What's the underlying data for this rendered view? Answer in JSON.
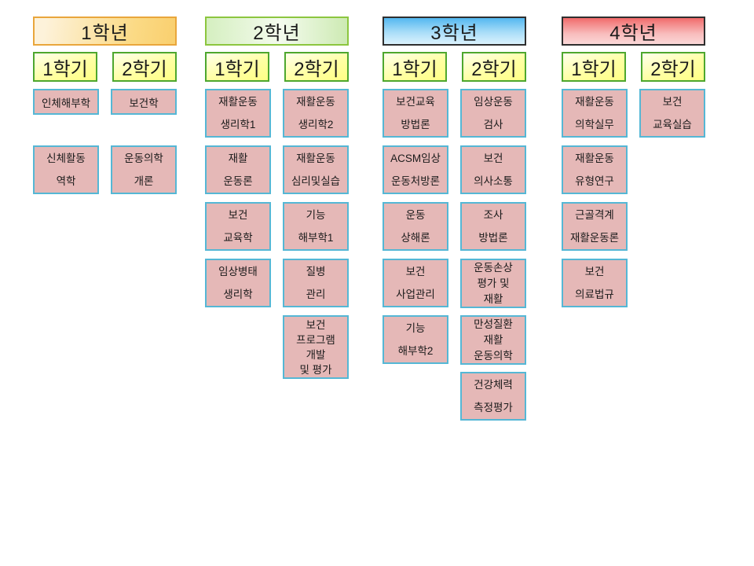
{
  "colors": {
    "course_fill": "#e5b8b7",
    "course_border": "#55b7d5",
    "semester_fill": "#ffff8c",
    "semester_border": "#4ea72e",
    "year1_accent": "#f9cf6e",
    "year2_accent": "#cdeab3",
    "year3_accent": "#54b8f0",
    "year4_accent": "#f16b6b"
  },
  "columns": [
    {
      "year_label": "1학년",
      "theme": "orange",
      "semesters": [
        {
          "label": "1학기",
          "courses": [
            {
              "lines": [
                "인체해부학"
              ]
            },
            {
              "lines": [
                "신체활동",
                "역학"
              ]
            }
          ]
        },
        {
          "label": "2학기",
          "courses": [
            {
              "lines": [
                "보건학"
              ]
            },
            {
              "lines": [
                "운동의학",
                "개론"
              ]
            }
          ]
        }
      ]
    },
    {
      "year_label": "2학년",
      "theme": "green",
      "semesters": [
        {
          "label": "1학기",
          "courses": [
            {
              "lines": [
                "재활운동",
                "생리학1"
              ]
            },
            {
              "lines": [
                "재활",
                "운동론"
              ]
            },
            {
              "lines": [
                "보건",
                "교육학"
              ]
            },
            {
              "lines": [
                "임상병태",
                "생리학"
              ]
            }
          ]
        },
        {
          "label": "2학기",
          "courses": [
            {
              "lines": [
                "재활운동",
                "생리학2"
              ]
            },
            {
              "lines": [
                "재활운동",
                "심리및실습"
              ]
            },
            {
              "lines": [
                "기능",
                "해부학1"
              ]
            },
            {
              "lines": [
                "질병",
                "관리"
              ]
            },
            {
              "lines": [
                "보건",
                "프로그램",
                "개발",
                "및 평가"
              ]
            }
          ]
        }
      ]
    },
    {
      "year_label": "3학년",
      "theme": "blue",
      "semesters": [
        {
          "label": "1학기",
          "courses": [
            {
              "lines": [
                "보건교육",
                "방법론"
              ]
            },
            {
              "lines": [
                "ACSM임상",
                "운동처방론"
              ]
            },
            {
              "lines": [
                "운동",
                "상해론"
              ]
            },
            {
              "lines": [
                "보건",
                "사업관리"
              ]
            },
            {
              "lines": [
                "기능",
                "해부학2"
              ]
            }
          ]
        },
        {
          "label": "2학기",
          "courses": [
            {
              "lines": [
                "임상운동",
                "검사"
              ]
            },
            {
              "lines": [
                "보건",
                "의사소통"
              ]
            },
            {
              "lines": [
                "조사",
                "방법론"
              ]
            },
            {
              "lines": [
                "운동손상",
                "평가 및",
                "재활"
              ]
            },
            {
              "lines": [
                "만성질환",
                "재활",
                "운동의학"
              ]
            },
            {
              "lines": [
                "건강체력",
                "측정평가"
              ]
            }
          ]
        }
      ]
    },
    {
      "year_label": "4학년",
      "theme": "red",
      "semesters": [
        {
          "label": "1학기",
          "courses": [
            {
              "lines": [
                "재활운동",
                "의학실무"
              ]
            },
            {
              "lines": [
                "재활운동",
                "유형연구"
              ]
            },
            {
              "lines": [
                "근골격계",
                "재활운동론"
              ]
            },
            {
              "lines": [
                "보건",
                "의료법규"
              ]
            }
          ]
        },
        {
          "label": "2학기",
          "courses": [
            {
              "lines": [
                "보건",
                "교육실습"
              ]
            }
          ]
        }
      ]
    }
  ]
}
